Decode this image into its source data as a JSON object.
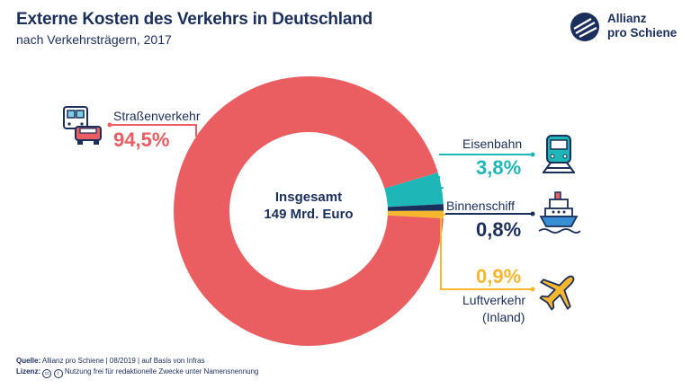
{
  "header": {
    "title": "Externe Kosten des Verkehrs in Deutschland",
    "subtitle": "nach Verkehrsträgern, 2017"
  },
  "logo": {
    "line1": "Allianz",
    "line2": "pro Schiene",
    "icon": "allianz-pro-schiene-logo"
  },
  "center": {
    "line1": "Insgesamt",
    "line2": "149 Mrd. Euro"
  },
  "colors": {
    "strasse": "#ea5e62",
    "eisenbahn": "#1eb7b8",
    "binnenschiff": "#1b2f5c",
    "luftverkehr": "#f6b72e",
    "text": "#1b2f5c"
  },
  "chart_data": {
    "type": "pie",
    "variant": "donut",
    "title": "Externe Kosten des Verkehrs in Deutschland",
    "subtitle": "nach Verkehrsträgern, 2017",
    "total_label": "Insgesamt 149 Mrd. Euro",
    "unit": "%",
    "slices": [
      {
        "name": "Straßenverkehr",
        "value": 94.5,
        "label": "94,5%",
        "color": "#ea5e62",
        "icon": "bus-car-icon"
      },
      {
        "name": "Eisenbahn",
        "value": 3.8,
        "label": "3,8%",
        "color": "#1eb7b8",
        "icon": "train-icon"
      },
      {
        "name": "Binnenschiff",
        "value": 0.8,
        "label": "0,8%",
        "color": "#1b2f5c",
        "icon": "ship-icon"
      },
      {
        "name": "Luftverkehr",
        "name_line2": "(Inland)",
        "value": 0.9,
        "label": "0,9%",
        "color": "#f6b72e",
        "icon": "airplane-icon"
      }
    ]
  },
  "footer": {
    "source_label": "Quelle:",
    "source_text": "Allianz pro Schiene | 08/2019 | auf Basis von Infras",
    "license_label": "Lizenz:",
    "license_text": "Nutzung frei für redaktionelle Zwecke unter Namensnennung"
  }
}
